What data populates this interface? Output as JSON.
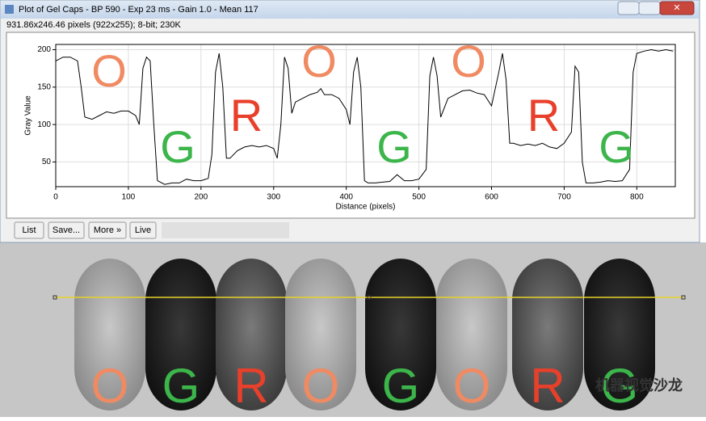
{
  "window": {
    "title": "Plot of Gel Caps - BP 590 - Exp 23 ms - Gain 1.0 - Mean 117",
    "info": "931.86x246.46 pixels (922x255); 8-bit; 230K",
    "buttons": [
      "List",
      "Save...",
      "More »",
      "Live"
    ]
  },
  "chart_data": {
    "type": "line",
    "xlabel": "Distance (pixels)",
    "ylabel": "Gray Value",
    "color": "#000000",
    "x": [
      0,
      10,
      20,
      30,
      35,
      40,
      50,
      60,
      70,
      80,
      90,
      100,
      110,
      115,
      120,
      125,
      130,
      135,
      140,
      150,
      160,
      170,
      180,
      190,
      200,
      210,
      215,
      220,
      225,
      230,
      235,
      240,
      250,
      260,
      270,
      280,
      290,
      300,
      305,
      310,
      315,
      320,
      325,
      330,
      340,
      350,
      360,
      365,
      370,
      380,
      390,
      400,
      405,
      410,
      415,
      420,
      425,
      430,
      440,
      450,
      460,
      470,
      480,
      490,
      500,
      510,
      515,
      520,
      525,
      530,
      540,
      550,
      560,
      570,
      580,
      590,
      600,
      610,
      615,
      620,
      625,
      630,
      640,
      650,
      660,
      670,
      680,
      690,
      700,
      710,
      715,
      720,
      725,
      730,
      740,
      750,
      760,
      770,
      780,
      790,
      795,
      800,
      810,
      820,
      830,
      840,
      850
    ],
    "values": [
      185,
      190,
      190,
      185,
      150,
      110,
      107,
      112,
      117,
      115,
      118,
      118,
      112,
      100,
      175,
      190,
      185,
      100,
      25,
      20,
      22,
      22,
      27,
      25,
      25,
      28,
      60,
      170,
      195,
      150,
      55,
      55,
      65,
      70,
      72,
      70,
      72,
      68,
      55,
      100,
      190,
      175,
      115,
      130,
      135,
      140,
      143,
      148,
      140,
      140,
      135,
      120,
      100,
      170,
      190,
      150,
      25,
      22,
      22,
      23,
      24,
      33,
      25,
      25,
      27,
      40,
      165,
      190,
      165,
      110,
      135,
      140,
      145,
      146,
      142,
      140,
      125,
      170,
      195,
      160,
      75,
      75,
      72,
      74,
      72,
      75,
      70,
      68,
      75,
      90,
      178,
      170,
      50,
      22,
      22,
      23,
      25,
      24,
      25,
      40,
      170,
      195,
      198,
      200,
      198,
      200,
      198
    ],
    "xlim": [
      0,
      853
    ],
    "ylim": [
      17,
      207
    ],
    "xticks": [
      0,
      100,
      200,
      300,
      400,
      500,
      600,
      700,
      800
    ],
    "yticks": [
      50,
      100,
      150,
      200
    ],
    "grid": true,
    "annotations": [
      {
        "text": "O",
        "color": "#f08a62"
      },
      {
        "text": "G",
        "color": "#3cb54a"
      },
      {
        "text": "R",
        "color": "#e8402a"
      },
      {
        "text": "O",
        "color": "#f08a62"
      },
      {
        "text": "G",
        "color": "#3cb54a"
      },
      {
        "text": "O",
        "color": "#f08a62"
      },
      {
        "text": "R",
        "color": "#e8402a"
      },
      {
        "text": "G",
        "color": "#3cb54a"
      }
    ]
  },
  "image": {
    "labels": [
      {
        "text": "O",
        "color": "#f08a62"
      },
      {
        "text": "G",
        "color": "#3cb54a"
      },
      {
        "text": "R",
        "color": "#e8402a"
      },
      {
        "text": "O",
        "color": "#f08a62"
      },
      {
        "text": "G",
        "color": "#3cb54a"
      },
      {
        "text": "O",
        "color": "#f08a62"
      },
      {
        "text": "R",
        "color": "#e8402a"
      },
      {
        "text": "G",
        "color": "#3cb54a"
      }
    ],
    "watermark": "机器视觉沙龙"
  }
}
